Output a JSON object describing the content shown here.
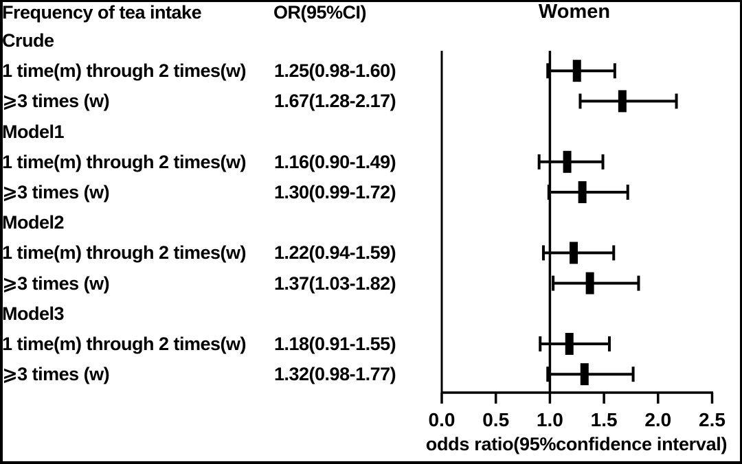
{
  "chart_data": {
    "type": "forest",
    "title": "Women",
    "subgroup_column_header": "Frequency of tea intake",
    "estimate_column_header": "OR(95%CI)",
    "xlabel": "odds ratio(95%confidence interval)",
    "xlim": [
      0.0,
      2.5
    ],
    "x_ticks": [
      "0.0",
      "0.5",
      "1.0",
      "1.5",
      "2.0",
      "2.5"
    ],
    "reference_line": 1.0,
    "grid": false,
    "legend": "none",
    "marker_color": "#000000",
    "groups": [
      {
        "name": "Crude",
        "rows": [
          {
            "label": "1 time(m) through 2 times(w)",
            "text": "1.25(0.98-1.60)",
            "or": 1.25,
            "ci_low": 0.98,
            "ci_high": 1.6
          },
          {
            "label": "⩾3 times (w)",
            "text": "1.67(1.28-2.17)",
            "or": 1.67,
            "ci_low": 1.28,
            "ci_high": 2.17
          }
        ]
      },
      {
        "name": "Model1",
        "rows": [
          {
            "label": "1 time(m) through 2 times(w)",
            "text": "1.16(0.90-1.49)",
            "or": 1.16,
            "ci_low": 0.9,
            "ci_high": 1.49
          },
          {
            "label": "⩾3 times (w)",
            "text": "1.30(0.99-1.72)",
            "or": 1.3,
            "ci_low": 0.99,
            "ci_high": 1.72
          }
        ]
      },
      {
        "name": "Model2",
        "rows": [
          {
            "label": "1 time(m) through 2 times(w)",
            "text": "1.22(0.94-1.59)",
            "or": 1.22,
            "ci_low": 0.94,
            "ci_high": 1.59
          },
          {
            "label": "⩾3 times (w)",
            "text": "1.37(1.03-1.82)",
            "or": 1.37,
            "ci_low": 1.03,
            "ci_high": 1.82
          }
        ]
      },
      {
        "name": "Model3",
        "rows": [
          {
            "label": "1 time(m) through 2 times(w)",
            "text": "1.18(0.91-1.55)",
            "or": 1.18,
            "ci_low": 0.91,
            "ci_high": 1.55
          },
          {
            "label": "⩾3 times (w)",
            "text": "1.32(0.98-1.77)",
            "or": 1.32,
            "ci_low": 0.98,
            "ci_high": 1.77
          }
        ]
      }
    ]
  }
}
